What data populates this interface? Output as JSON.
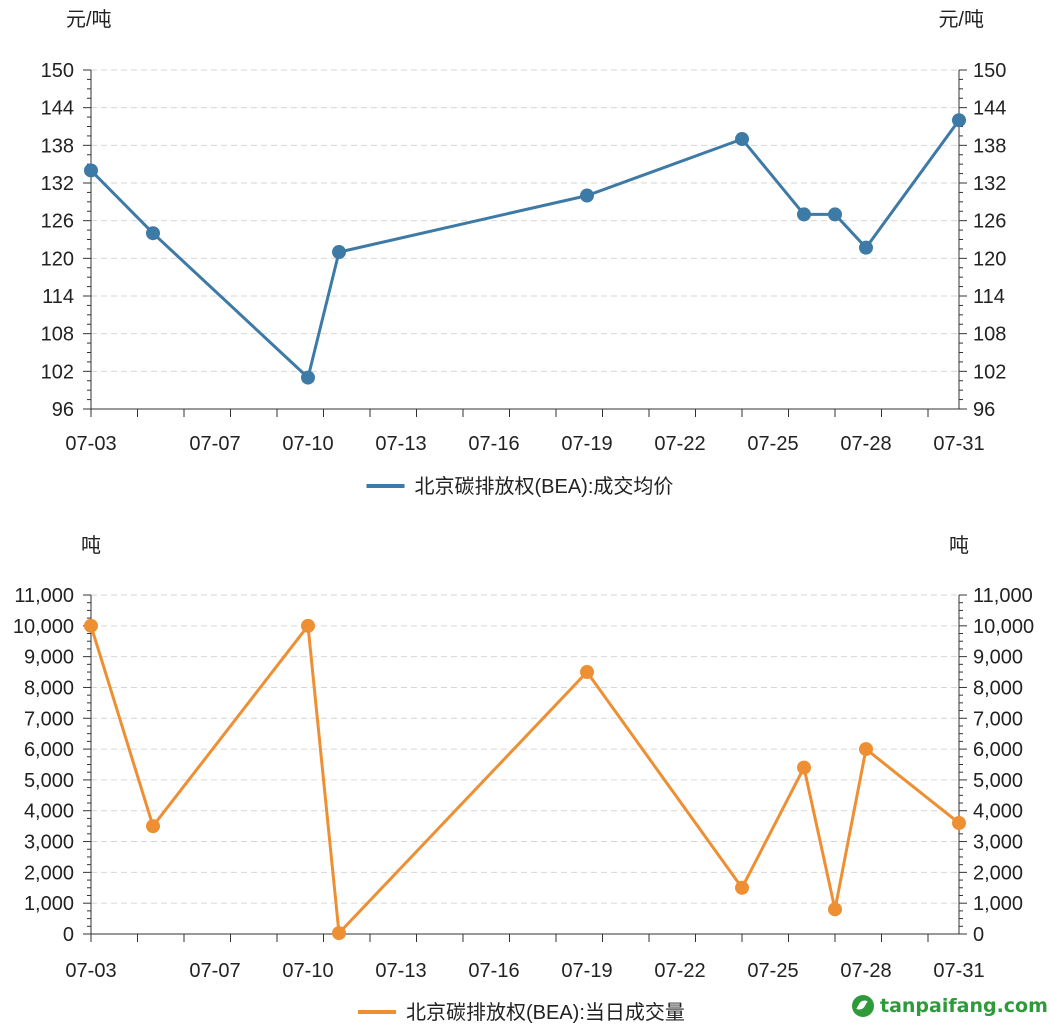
{
  "chart_data": [
    {
      "type": "line",
      "y_unit_left": "元/吨",
      "y_unit_right": "元/吨",
      "x_ticks": [
        "07-03",
        "07-07",
        "07-10",
        "07-13",
        "07-16",
        "07-19",
        "07-22",
        "07-25",
        "07-28",
        "07-31"
      ],
      "y_ticks": [
        "96",
        "102",
        "108",
        "114",
        "120",
        "126",
        "132",
        "138",
        "144",
        "150"
      ],
      "ylim": [
        96,
        150
      ],
      "grid": true,
      "legend_position": "bottom-center",
      "color": "#3d7aa6",
      "series": [
        {
          "name": "北京碳排放权(BEA):成交均价",
          "points": [
            {
              "x": "07-03",
              "y": 134.0
            },
            {
              "x": "07-05",
              "y": 124.0
            },
            {
              "x": "07-10",
              "y": 101.0
            },
            {
              "x": "07-11",
              "y": 121.0
            },
            {
              "x": "07-19",
              "y": 130.0
            },
            {
              "x": "07-24",
              "y": 139.0
            },
            {
              "x": "07-26",
              "y": 127.0
            },
            {
              "x": "07-27",
              "y": 127.0
            },
            {
              "x": "07-28",
              "y": 121.7
            },
            {
              "x": "07-31",
              "y": 142.0
            }
          ]
        }
      ]
    },
    {
      "type": "line",
      "y_unit_left": "吨",
      "y_unit_right": "吨",
      "x_ticks": [
        "07-03",
        "07-07",
        "07-10",
        "07-13",
        "07-16",
        "07-19",
        "07-22",
        "07-25",
        "07-28",
        "07-31"
      ],
      "y_ticks": [
        "0",
        "1,000",
        "2,000",
        "3,000",
        "4,000",
        "5,000",
        "6,000",
        "7,000",
        "8,000",
        "9,000",
        "10,000",
        "11,000"
      ],
      "ylim": [
        0,
        11000
      ],
      "grid": true,
      "legend_position": "bottom-center",
      "color": "#ed8f32",
      "series": [
        {
          "name": "北京碳排放权(BEA):当日成交量",
          "points": [
            {
              "x": "07-03",
              "y": 10000
            },
            {
              "x": "07-05",
              "y": 3500
            },
            {
              "x": "07-10",
              "y": 10000
            },
            {
              "x": "07-11",
              "y": 30
            },
            {
              "x": "07-19",
              "y": 8500
            },
            {
              "x": "07-24",
              "y": 1500
            },
            {
              "x": "07-26",
              "y": 5400
            },
            {
              "x": "07-27",
              "y": 800
            },
            {
              "x": "07-28",
              "y": 6000
            },
            {
              "x": "07-31",
              "y": 3600
            }
          ]
        }
      ]
    }
  ],
  "watermark": {
    "text": "tanpaifang.com"
  }
}
